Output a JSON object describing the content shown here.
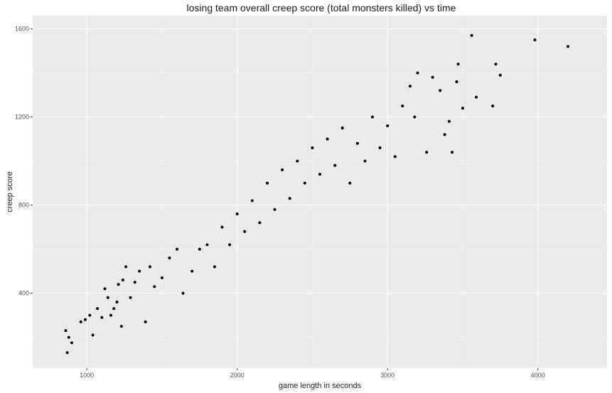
{
  "chart_data": {
    "type": "scatter",
    "title": "losing team overall creep score (total monsters killed) vs time",
    "xlabel": "game length in seconds",
    "ylabel": "creep score",
    "xlim": [
      640,
      4460
    ],
    "ylim": [
      60,
      1660
    ],
    "x_ticks": [
      1000,
      2000,
      3000,
      4000
    ],
    "y_ticks": [
      400,
      800,
      1200,
      1600
    ],
    "x_tick_labels": [
      "1000",
      "2000",
      "3000",
      "4000"
    ],
    "y_tick_labels": [
      "400",
      "800",
      "1200",
      "1600"
    ],
    "grid": true,
    "panel_color": "#ebebeb",
    "grid_color": "#ffffff",
    "point_color": "#000000",
    "points": [
      [
        870,
        130
      ],
      [
        860,
        230
      ],
      [
        880,
        200
      ],
      [
        900,
        175
      ],
      [
        960,
        270
      ],
      [
        990,
        280
      ],
      [
        1020,
        300
      ],
      [
        1040,
        210
      ],
      [
        1070,
        330
      ],
      [
        1100,
        290
      ],
      [
        1120,
        420
      ],
      [
        1140,
        380
      ],
      [
        1160,
        300
      ],
      [
        1180,
        330
      ],
      [
        1200,
        360
      ],
      [
        1210,
        440
      ],
      [
        1230,
        250
      ],
      [
        1240,
        460
      ],
      [
        1260,
        520
      ],
      [
        1290,
        380
      ],
      [
        1320,
        450
      ],
      [
        1350,
        500
      ],
      [
        1390,
        270
      ],
      [
        1420,
        520
      ],
      [
        1450,
        430
      ],
      [
        1500,
        470
      ],
      [
        1550,
        560
      ],
      [
        1600,
        600
      ],
      [
        1640,
        400
      ],
      [
        1700,
        500
      ],
      [
        1750,
        600
      ],
      [
        1800,
        620
      ],
      [
        1850,
        520
      ],
      [
        1900,
        700
      ],
      [
        1950,
        620
      ],
      [
        2000,
        760
      ],
      [
        2050,
        680
      ],
      [
        2100,
        820
      ],
      [
        2150,
        720
      ],
      [
        2200,
        900
      ],
      [
        2250,
        780
      ],
      [
        2300,
        960
      ],
      [
        2350,
        830
      ],
      [
        2400,
        1000
      ],
      [
        2450,
        900
      ],
      [
        2500,
        1060
      ],
      [
        2550,
        940
      ],
      [
        2600,
        1100
      ],
      [
        2650,
        980
      ],
      [
        2700,
        1150
      ],
      [
        2750,
        900
      ],
      [
        2800,
        1080
      ],
      [
        2850,
        1000
      ],
      [
        2900,
        1200
      ],
      [
        2950,
        1060
      ],
      [
        3000,
        1160
      ],
      [
        3050,
        1020
      ],
      [
        3100,
        1250
      ],
      [
        3150,
        1340
      ],
      [
        3180,
        1200
      ],
      [
        3200,
        1400
      ],
      [
        3260,
        1040
      ],
      [
        3300,
        1380
      ],
      [
        3350,
        1320
      ],
      [
        3380,
        1120
      ],
      [
        3410,
        1180
      ],
      [
        3430,
        1040
      ],
      [
        3460,
        1360
      ],
      [
        3470,
        1440
      ],
      [
        3500,
        1240
      ],
      [
        3560,
        1570
      ],
      [
        3590,
        1290
      ],
      [
        3700,
        1250
      ],
      [
        3720,
        1440
      ],
      [
        3750,
        1390
      ],
      [
        3980,
        1550
      ],
      [
        4200,
        1520
      ]
    ]
  }
}
